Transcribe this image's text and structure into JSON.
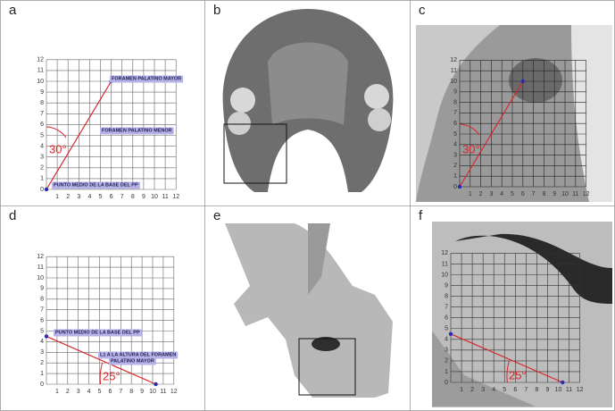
{
  "panels": [
    {
      "label": "a",
      "ticks": [
        0,
        1,
        2,
        3,
        4,
        5,
        6,
        7,
        8,
        9,
        10,
        11,
        12
      ],
      "angle": "30°",
      "annotations": [
        "FORAMEN PALATINO MAYOR",
        "FORAMEN PALATINO MENOR",
        "PUNTO MEDIO DE LA BASE DEL PP"
      ]
    },
    {
      "label": "b"
    },
    {
      "label": "c",
      "ticks": [
        0,
        1,
        2,
        3,
        4,
        5,
        6,
        7,
        8,
        9,
        10,
        11,
        12
      ],
      "angle": "30°"
    },
    {
      "label": "d",
      "ticks": [
        0,
        1,
        2,
        3,
        4,
        5,
        6,
        7,
        8,
        9,
        10,
        11,
        12
      ],
      "angle": "25°",
      "annotations": [
        "PUNTO MEDIO DE LA BASE DEL PP",
        "L1 A LA ALTURA DEL FORAMEN",
        "PALATINO MAYOR"
      ]
    },
    {
      "label": "e"
    },
    {
      "label": "f",
      "ticks": [
        0,
        1,
        2,
        3,
        4,
        5,
        6,
        7,
        8,
        9,
        10,
        11,
        12
      ],
      "angle": "25°"
    }
  ]
}
